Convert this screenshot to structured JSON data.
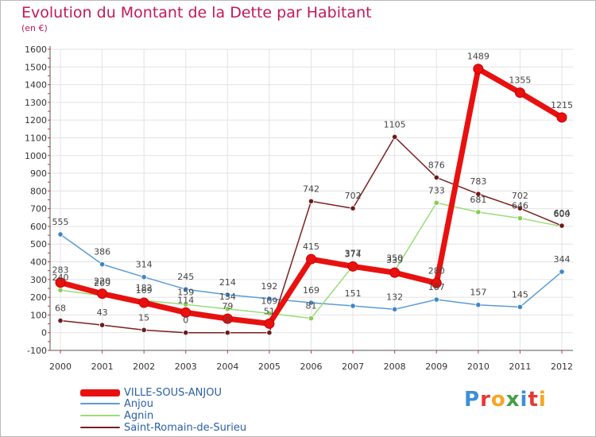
{
  "title": "Evolution du Montant de la Dette par Habitant",
  "unit": "(en €)",
  "logo": {
    "text": "Proxiti",
    "letters": [
      "P",
      "r",
      "o",
      "x",
      "i",
      "t",
      "i"
    ]
  },
  "chart_data": {
    "type": "line",
    "title": "Evolution du Montant de la Dette par Habitant",
    "ylabel": "(en €)",
    "xlabel": "",
    "ylim": [
      -100,
      1600
    ],
    "yticks": [
      -100,
      0,
      100,
      200,
      300,
      400,
      500,
      600,
      700,
      800,
      900,
      1000,
      1100,
      1200,
      1300,
      1400,
      1500,
      1600
    ],
    "categories": [
      "2000",
      "2001",
      "2002",
      "2003",
      "2004",
      "2005",
      "2006",
      "2007",
      "2008",
      "2009",
      "2010",
      "2011",
      "2012"
    ],
    "series": [
      {
        "name": "VILLE-SOUS-ANJOU",
        "color": "#e8110f",
        "point_color": "#e8110f",
        "values": [
          283,
          220,
          169,
          114,
          79,
          51,
          415,
          374,
          339,
          280,
          1489,
          1355,
          1215
        ],
        "labels": [
          "283",
          "220",
          "169",
          "114",
          "79",
          "51",
          "415",
          "374",
          "339",
          "280",
          "1489",
          "1355",
          "1215"
        ]
      },
      {
        "name": "Anjou",
        "color": "#5b9bd5",
        "point_color": "#3f86c9",
        "values": [
          555,
          386,
          314,
          245,
          214,
          192,
          169,
          151,
          132,
          187,
          157,
          145,
          344
        ],
        "labels": [
          "555",
          "386",
          "314",
          "245",
          "214",
          "192",
          "169",
          "151",
          "132",
          "187",
          "157",
          "145",
          "344"
        ]
      },
      {
        "name": "Agnin",
        "color": "#99dd77",
        "point_color": "#88cc55",
        "values": [
          240,
          209,
          182,
          159,
          134,
          109,
          81,
          377,
          350,
          733,
          681,
          646,
          600
        ],
        "labels": [
          "240",
          "209",
          "182",
          "159",
          "134",
          "109",
          "81",
          "377",
          "350",
          "733",
          "681",
          "646",
          "600"
        ]
      },
      {
        "name": "Saint-Romain-de-Surieu",
        "color": "#7a1f1f",
        "point_color": "#6b1a1a",
        "values": [
          68,
          43,
          15,
          0,
          0,
          0,
          742,
          702,
          1105,
          876,
          783,
          702,
          604
        ],
        "labels": [
          "68",
          "43",
          "15",
          "0",
          "0",
          "",
          "742",
          "702",
          "1105",
          "876",
          "783",
          "702",
          "604"
        ]
      }
    ],
    "legend_position": "bottom-left",
    "grid": true
  }
}
